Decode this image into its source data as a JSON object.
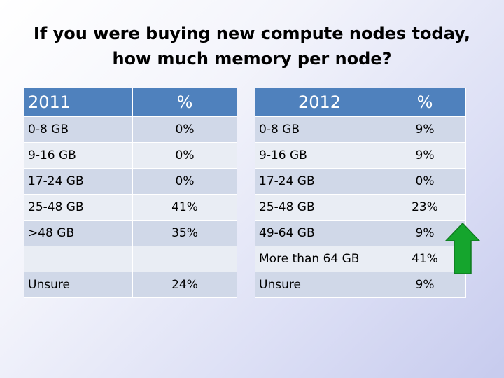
{
  "slide": {
    "title_line1": "If you were buying new compute nodes today,",
    "title_line2": "how much memory per node?"
  },
  "colors": {
    "header": "#4f81bd",
    "row_dark": "#d0d8e8",
    "row_light": "#e9edf4",
    "arrow": "#15a52d"
  },
  "table_2011": {
    "header": [
      "2011",
      "%"
    ],
    "rows": [
      [
        "0-8 GB",
        "0%"
      ],
      [
        "9-16 GB",
        "0%"
      ],
      [
        "17-24 GB",
        "0%"
      ],
      [
        "25-48 GB",
        "41%"
      ],
      [
        ">48 GB",
        "35%"
      ],
      [
        "",
        ""
      ],
      [
        "Unsure",
        "24%"
      ]
    ]
  },
  "table_2012": {
    "header": [
      "2012",
      "%"
    ],
    "rows": [
      [
        "0-8 GB",
        "9%"
      ],
      [
        "9-16 GB",
        "9%"
      ],
      [
        "17-24 GB",
        "0%"
      ],
      [
        "25-48 GB",
        "23%"
      ],
      [
        "49-64 GB",
        "9%"
      ],
      [
        "More than 64 GB",
        "41%"
      ],
      [
        "Unsure",
        "9%"
      ]
    ]
  },
  "arrow_icon": "up-arrow-icon"
}
